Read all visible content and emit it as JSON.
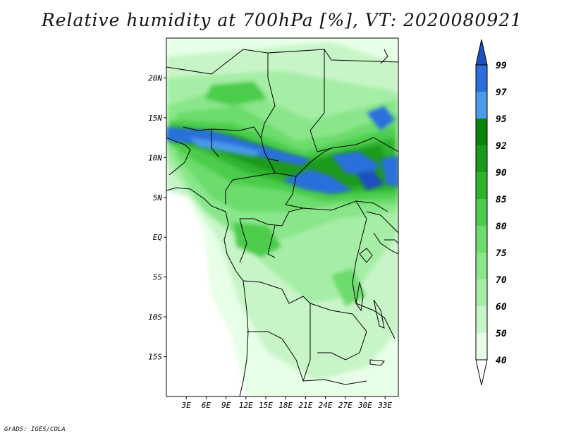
{
  "title": "Relative humidity at 700hPa [%], VT: 2020080921",
  "credit": "GrADS: IGES/COLA",
  "map": {
    "lat_labels": [
      "20N",
      "15N",
      "10N",
      "5N",
      "EQ",
      "5S",
      "10S",
      "15S"
    ],
    "lat_values": [
      20,
      15,
      10,
      5,
      0,
      -5,
      -10,
      -15
    ],
    "lon_labels": [
      "3E",
      "6E",
      "9E",
      "12E",
      "15E",
      "18E",
      "21E",
      "24E",
      "27E",
      "30E",
      "33E"
    ],
    "lon_values": [
      3,
      6,
      9,
      12,
      15,
      18,
      21,
      24,
      27,
      30,
      33
    ],
    "lon_range": [
      0,
      35
    ],
    "lat_range": [
      -20,
      25
    ]
  },
  "colorbar": {
    "levels": [
      "40",
      "50",
      "60",
      "70",
      "75",
      "80",
      "85",
      "90",
      "92",
      "95",
      "97",
      "99"
    ],
    "colors": [
      "#ffffff",
      "#e6ffe6",
      "#c8f5c8",
      "#a6eea6",
      "#8ae68a",
      "#6cdc6c",
      "#4bcd4b",
      "#2db42d",
      "#1a9a1a",
      "#0c840c",
      "#4a9be8",
      "#2a6fdc",
      "#1e4fbf"
    ]
  },
  "colors": {
    "land_line": "#000000",
    "frame": "#000000"
  }
}
